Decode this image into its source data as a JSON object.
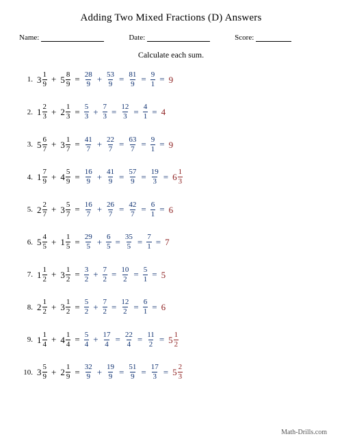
{
  "title": "Adding Two Mixed Fractions (D) Answers",
  "meta": {
    "name_label": "Name:",
    "date_label": "Date:",
    "score_label": "Score:"
  },
  "instruction": "Calculate each sum.",
  "colors": {
    "problem": "#000000",
    "step": "#0b2e6f",
    "answer": "#8a1a1a",
    "bg": "#ffffff"
  },
  "footer": "Math-Drills.com",
  "problems": [
    {
      "n": "1.",
      "a": {
        "w": "3",
        "n": "1",
        "d": "9"
      },
      "b": {
        "w": "5",
        "n": "8",
        "d": "9"
      },
      "s1a": {
        "n": "28",
        "d": "9"
      },
      "s1b": {
        "n": "53",
        "d": "9"
      },
      "s2": {
        "n": "81",
        "d": "9"
      },
      "s3": {
        "n": "9",
        "d": "1"
      },
      "ans_whole": "9"
    },
    {
      "n": "2.",
      "a": {
        "w": "1",
        "n": "2",
        "d": "3"
      },
      "b": {
        "w": "2",
        "n": "1",
        "d": "3"
      },
      "s1a": {
        "n": "5",
        "d": "3"
      },
      "s1b": {
        "n": "7",
        "d": "3"
      },
      "s2": {
        "n": "12",
        "d": "3"
      },
      "s3": {
        "n": "4",
        "d": "1"
      },
      "ans_whole": "4"
    },
    {
      "n": "3.",
      "a": {
        "w": "5",
        "n": "6",
        "d": "7"
      },
      "b": {
        "w": "3",
        "n": "1",
        "d": "7"
      },
      "s1a": {
        "n": "41",
        "d": "7"
      },
      "s1b": {
        "n": "22",
        "d": "7"
      },
      "s2": {
        "n": "63",
        "d": "7"
      },
      "s3": {
        "n": "9",
        "d": "1"
      },
      "ans_whole": "9"
    },
    {
      "n": "4.",
      "a": {
        "w": "1",
        "n": "7",
        "d": "9"
      },
      "b": {
        "w": "4",
        "n": "5",
        "d": "9"
      },
      "s1a": {
        "n": "16",
        "d": "9"
      },
      "s1b": {
        "n": "41",
        "d": "9"
      },
      "s2": {
        "n": "57",
        "d": "9"
      },
      "s3": {
        "n": "19",
        "d": "3"
      },
      "ans_mixed": {
        "w": "6",
        "n": "1",
        "d": "3"
      }
    },
    {
      "n": "5.",
      "a": {
        "w": "2",
        "n": "2",
        "d": "7"
      },
      "b": {
        "w": "3",
        "n": "5",
        "d": "7"
      },
      "s1a": {
        "n": "16",
        "d": "7"
      },
      "s1b": {
        "n": "26",
        "d": "7"
      },
      "s2": {
        "n": "42",
        "d": "7"
      },
      "s3": {
        "n": "6",
        "d": "1"
      },
      "ans_whole": "6"
    },
    {
      "n": "6.",
      "a": {
        "w": "5",
        "n": "4",
        "d": "5"
      },
      "b": {
        "w": "1",
        "n": "1",
        "d": "5"
      },
      "s1a": {
        "n": "29",
        "d": "5"
      },
      "s1b": {
        "n": "6",
        "d": "5"
      },
      "s2": {
        "n": "35",
        "d": "5"
      },
      "s3": {
        "n": "7",
        "d": "1"
      },
      "ans_whole": "7"
    },
    {
      "n": "7.",
      "a": {
        "w": "1",
        "n": "1",
        "d": "2"
      },
      "b": {
        "w": "3",
        "n": "1",
        "d": "2"
      },
      "s1a": {
        "n": "3",
        "d": "2"
      },
      "s1b": {
        "n": "7",
        "d": "2"
      },
      "s2": {
        "n": "10",
        "d": "2"
      },
      "s3": {
        "n": "5",
        "d": "1"
      },
      "ans_whole": "5"
    },
    {
      "n": "8.",
      "a": {
        "w": "2",
        "n": "1",
        "d": "2"
      },
      "b": {
        "w": "3",
        "n": "1",
        "d": "2"
      },
      "s1a": {
        "n": "5",
        "d": "2"
      },
      "s1b": {
        "n": "7",
        "d": "2"
      },
      "s2": {
        "n": "12",
        "d": "2"
      },
      "s3": {
        "n": "6",
        "d": "1"
      },
      "ans_whole": "6"
    },
    {
      "n": "9.",
      "a": {
        "w": "1",
        "n": "1",
        "d": "4"
      },
      "b": {
        "w": "4",
        "n": "1",
        "d": "4"
      },
      "s1a": {
        "n": "5",
        "d": "4"
      },
      "s1b": {
        "n": "17",
        "d": "4"
      },
      "s2": {
        "n": "22",
        "d": "4"
      },
      "s3": {
        "n": "11",
        "d": "2"
      },
      "ans_mixed": {
        "w": "5",
        "n": "1",
        "d": "2"
      }
    },
    {
      "n": "10.",
      "a": {
        "w": "3",
        "n": "5",
        "d": "9"
      },
      "b": {
        "w": "2",
        "n": "1",
        "d": "9"
      },
      "s1a": {
        "n": "32",
        "d": "9"
      },
      "s1b": {
        "n": "19",
        "d": "9"
      },
      "s2": {
        "n": "51",
        "d": "9"
      },
      "s3": {
        "n": "17",
        "d": "3"
      },
      "ans_mixed": {
        "w": "5",
        "n": "2",
        "d": "3"
      }
    }
  ]
}
